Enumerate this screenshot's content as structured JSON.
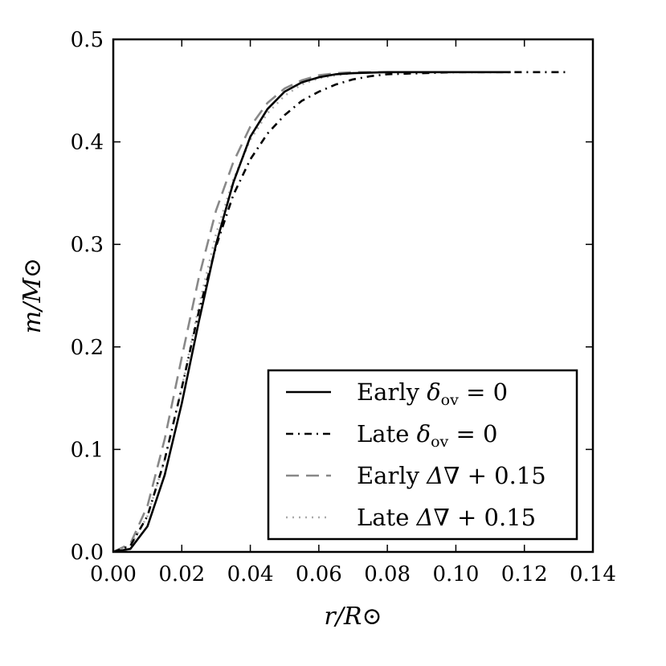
{
  "chart_data": {
    "type": "line",
    "xlabel": "r/R⊙",
    "ylabel": "m/M⊙",
    "xlim": [
      0.0,
      0.14
    ],
    "ylim": [
      0.0,
      0.5
    ],
    "x_ticks": [
      "0.00",
      "0.02",
      "0.04",
      "0.06",
      "0.08",
      "0.10",
      "0.12",
      "0.14"
    ],
    "y_ticks": [
      "0.0",
      "0.1",
      "0.2",
      "0.3",
      "0.4",
      "0.5"
    ],
    "grid": false,
    "legend_position": "lower-right",
    "series": [
      {
        "name": "Early δov = 0",
        "color": "#000000",
        "style": "solid",
        "x": [
          0.0,
          0.005,
          0.01,
          0.015,
          0.02,
          0.025,
          0.03,
          0.035,
          0.04,
          0.045,
          0.05,
          0.055,
          0.06,
          0.065,
          0.07,
          0.08,
          0.09,
          0.1,
          0.11,
          0.116
        ],
        "y": [
          0.0,
          0.003,
          0.025,
          0.075,
          0.145,
          0.225,
          0.3,
          0.36,
          0.405,
          0.432,
          0.449,
          0.458,
          0.463,
          0.466,
          0.467,
          0.468,
          0.468,
          0.468,
          0.468,
          0.468
        ]
      },
      {
        "name": "Late δov = 0",
        "color": "#000000",
        "style": "dashdot",
        "x": [
          0.0,
          0.005,
          0.01,
          0.015,
          0.02,
          0.025,
          0.03,
          0.035,
          0.04,
          0.045,
          0.05,
          0.055,
          0.06,
          0.065,
          0.07,
          0.075,
          0.08,
          0.09,
          0.1,
          0.11,
          0.12,
          0.133
        ],
        "y": [
          0.0,
          0.006,
          0.035,
          0.09,
          0.16,
          0.235,
          0.298,
          0.348,
          0.383,
          0.408,
          0.426,
          0.44,
          0.449,
          0.456,
          0.461,
          0.464,
          0.466,
          0.467,
          0.468,
          0.468,
          0.468,
          0.468
        ]
      },
      {
        "name": "Early ΔV + 0.15",
        "color": "#888888",
        "style": "dashed",
        "x": [
          0.0,
          0.005,
          0.01,
          0.015,
          0.02,
          0.025,
          0.03,
          0.035,
          0.04,
          0.045,
          0.05,
          0.055,
          0.06,
          0.065,
          0.07,
          0.08,
          0.09,
          0.1
        ],
        "y": [
          0.0,
          0.008,
          0.045,
          0.11,
          0.19,
          0.268,
          0.333,
          0.38,
          0.415,
          0.438,
          0.452,
          0.46,
          0.465,
          0.467,
          0.468,
          0.468,
          0.468,
          0.468
        ]
      },
      {
        "name": "Late ΔV + 0.15",
        "color": "#aaaaaa",
        "style": "dotted",
        "x": [
          0.0,
          0.005,
          0.01,
          0.015,
          0.02,
          0.025,
          0.03,
          0.035,
          0.04,
          0.045,
          0.05,
          0.055,
          0.06,
          0.065,
          0.07,
          0.08,
          0.09,
          0.1,
          0.11,
          0.116
        ],
        "y": [
          0.0,
          0.006,
          0.035,
          0.09,
          0.16,
          0.24,
          0.31,
          0.363,
          0.402,
          0.428,
          0.445,
          0.456,
          0.462,
          0.465,
          0.467,
          0.468,
          0.468,
          0.468,
          0.468,
          0.468
        ]
      }
    ],
    "legend": [
      {
        "label": "Early ",
        "math": "δ",
        "sub": "ov",
        "tail": " = 0"
      },
      {
        "label": "Late ",
        "math": "δ",
        "sub": "ov",
        "tail": " = 0"
      },
      {
        "label": "Early ",
        "math": "Δ∇",
        "sub": "",
        "tail": " + 0.15"
      },
      {
        "label": "Late ",
        "math": "Δ∇",
        "sub": "",
        "tail": " + 0.15"
      }
    ]
  }
}
